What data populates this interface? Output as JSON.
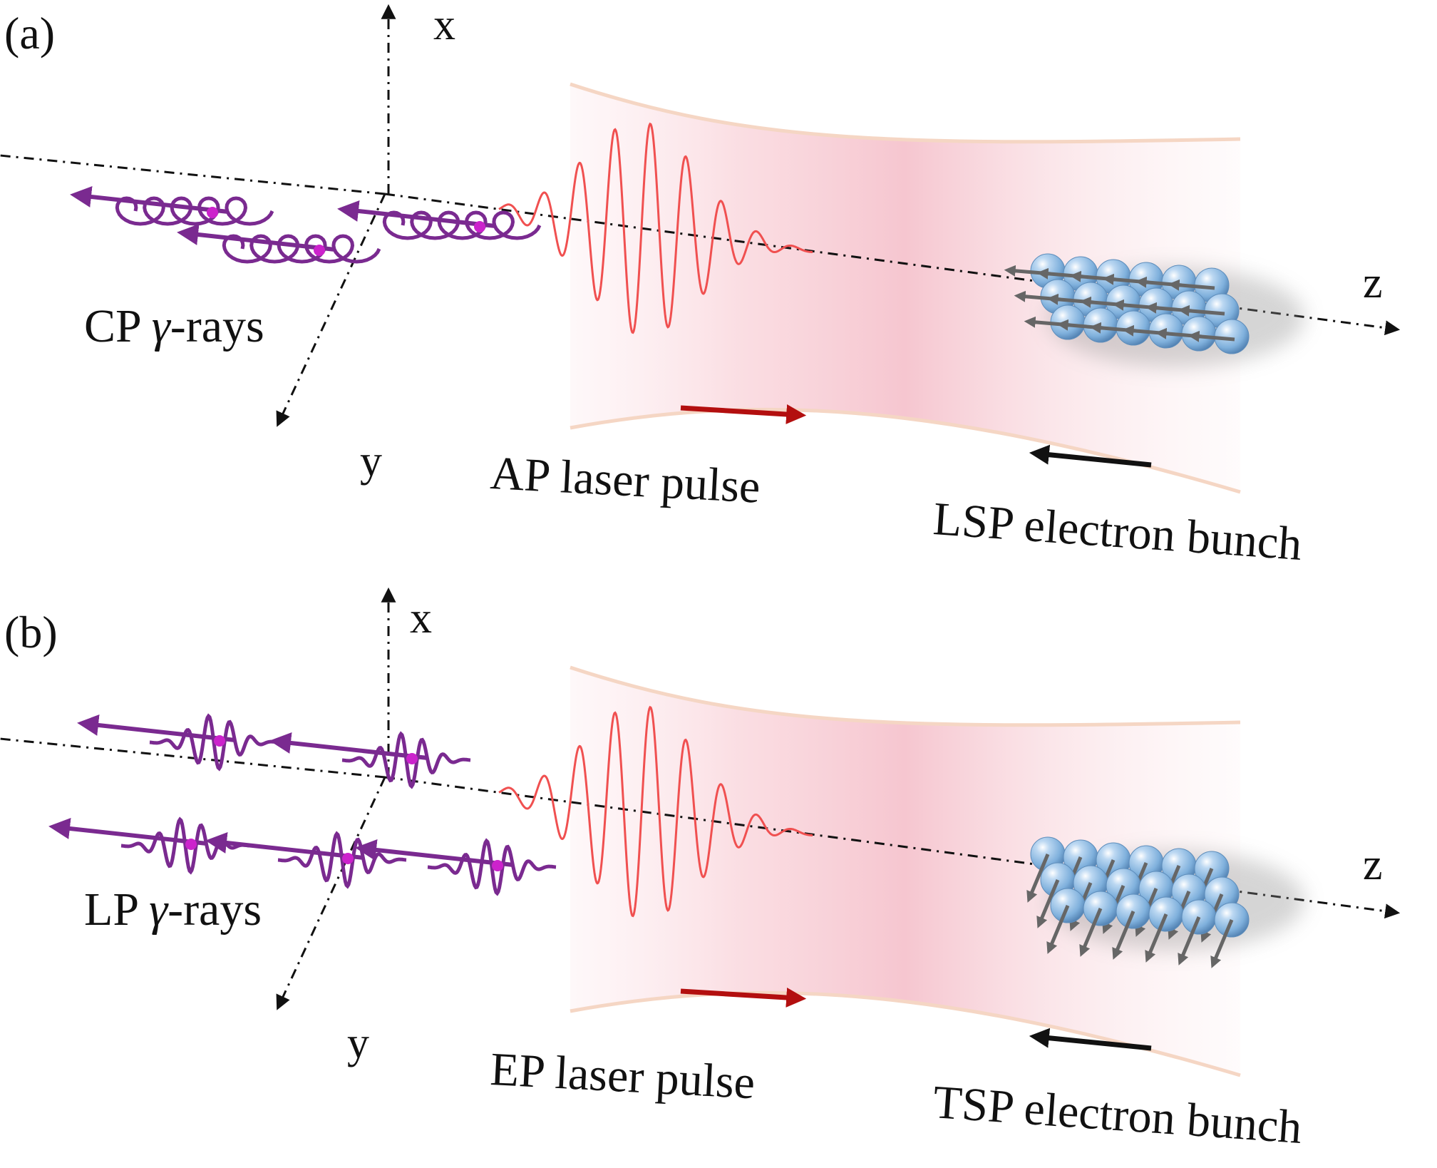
{
  "panels": [
    {
      "id": "a",
      "panel_label": "(a)",
      "axes": {
        "x": "x",
        "y": "y",
        "z": "z"
      },
      "gamma_label": {
        "prefix": "CP ",
        "symbol": "γ",
        "suffix": "-rays"
      },
      "laser_label": "AP laser pulse",
      "electron_label": "LSP electron bunch",
      "electron_spin": "longitudinal",
      "gamma_polarization": "circular"
    },
    {
      "id": "b",
      "panel_label": "(b)",
      "axes": {
        "x": "x",
        "y": "y",
        "z": "z"
      },
      "gamma_label": {
        "prefix": "LP ",
        "symbol": "γ",
        "suffix": "-rays"
      },
      "laser_label": "EP laser pulse",
      "electron_label": "TSP electron bunch",
      "electron_spin": "transverse",
      "gamma_polarization": "linear"
    }
  ],
  "colors": {
    "gamma": "#7a2a90",
    "gamma_core": "#cc22cc",
    "laser_wave": "#f05050",
    "laser_beam": "#f7c5cf",
    "laser_edge": "#f5d6c4",
    "laser_arrow": "#b30f0f",
    "electron": "#8db8e0",
    "spin_arrow": "#666666",
    "axis": "#111111"
  }
}
